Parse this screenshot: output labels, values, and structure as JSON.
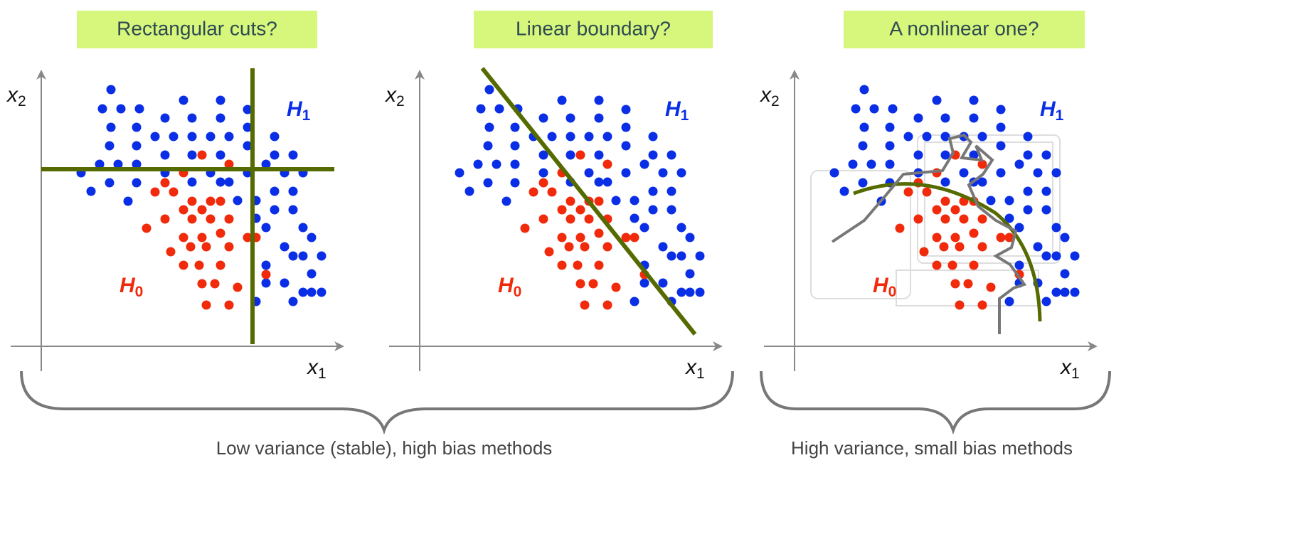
{
  "panels": [
    {
      "title": "Rectangular cuts?",
      "y_axis": {
        "symbol": "x",
        "index": "2"
      },
      "x_axis": {
        "symbol": "x",
        "index": "1"
      },
      "signal": {
        "symbol": "H",
        "index": "1"
      },
      "background": {
        "symbol": "H",
        "index": "0"
      }
    },
    {
      "title": "Linear boundary?",
      "y_axis": {
        "symbol": "x",
        "index": "2"
      },
      "x_axis": {
        "symbol": "x",
        "index": "1"
      },
      "signal": {
        "symbol": "H",
        "index": "1"
      },
      "background": {
        "symbol": "H",
        "index": "0"
      }
    },
    {
      "title": "A nonlinear one?",
      "y_axis": {
        "symbol": "x",
        "index": "2"
      },
      "x_axis": {
        "symbol": "x",
        "index": "1"
      },
      "signal": {
        "symbol": "H",
        "index": "1"
      },
      "background": {
        "symbol": "H",
        "index": "0"
      }
    }
  ],
  "captions": [
    "Low variance (stable), high bias methods",
    "High variance, small bias methods"
  ]
}
